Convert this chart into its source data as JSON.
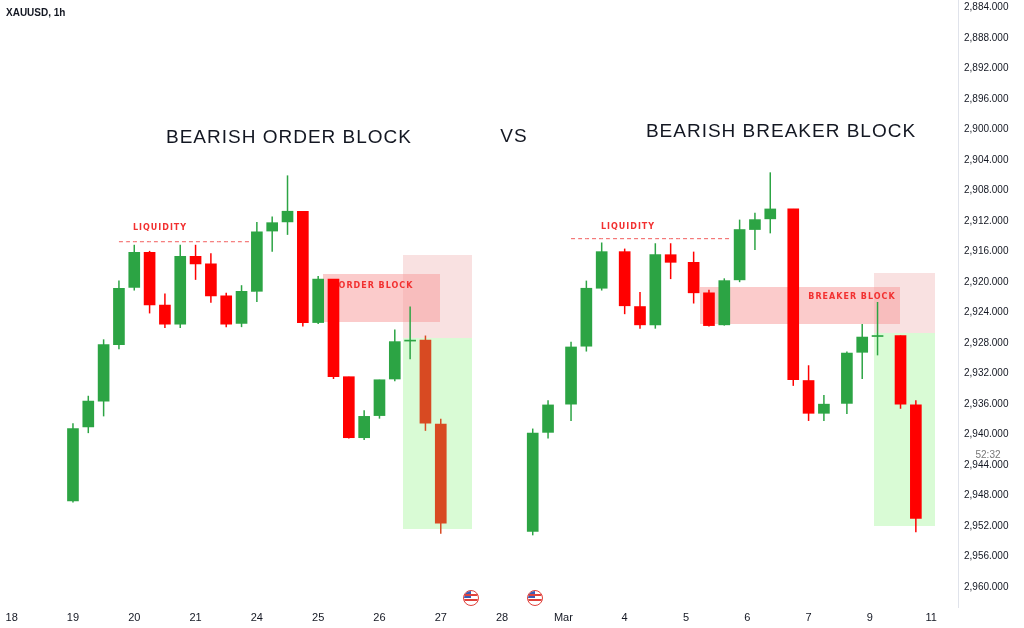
{
  "chart_data": {
    "type": "candlestick",
    "title": "XAUUSD, 1h",
    "annotations": [
      "LIQUIDITY",
      "LIQUIDITY",
      "ORDER BLOCK",
      "BREAKER BLOCK",
      "BEARISH ORDER BLOCK",
      "VS",
      "BEARISH BREAKER BLOCK",
      "52:32"
    ],
    "categories": [
      null,
      "18",
      null,
      null,
      null,
      null,
      null,
      null,
      null,
      "19",
      null,
      null,
      null,
      null,
      null,
      null,
      null,
      "20",
      null,
      null,
      null,
      null,
      null,
      null,
      null,
      "21",
      null,
      null,
      null,
      null,
      null,
      null,
      null,
      "24",
      null,
      null,
      null,
      null,
      null,
      null,
      null,
      "25",
      null,
      null,
      null,
      null,
      null,
      null,
      null,
      "26",
      null,
      null,
      null,
      null,
      null,
      null,
      null,
      "27",
      null,
      null,
      null,
      null,
      null,
      null,
      null,
      "28",
      null,
      null,
      null,
      null,
      null,
      null,
      null,
      "Mar",
      null,
      null,
      null,
      null,
      null,
      null,
      null,
      "4",
      null,
      null,
      null,
      null,
      null,
      null,
      null,
      "5",
      null,
      null,
      null,
      null,
      null,
      null,
      null,
      "6",
      null,
      null,
      null,
      null,
      null,
      null,
      null,
      "7",
      null,
      null,
      null,
      null,
      null,
      null,
      null,
      "9",
      null,
      null,
      null,
      null,
      null,
      null,
      null,
      "11",
      null,
      null,
      null
    ],
    "ohlc": [
      null,
      null,
      null,
      null,
      null,
      null,
      null,
      null,
      null,
      [
        2948.7,
        2948.9,
        2938.5,
        2939.2
      ],
      null,
      [
        2939.0,
        2939.8,
        2934.9,
        2935.6
      ],
      null,
      [
        2935.6,
        2937.6,
        2927.5,
        2928.2
      ],
      null,
      [
        2928.2,
        2928.8,
        2919.8,
        2920.8
      ],
      null,
      [
        2920.7,
        2921.1,
        2915.1,
        2916.1
      ],
      null,
      [
        2916.1,
        2924.1,
        2915.9,
        2923.0
      ],
      null,
      [
        2923.0,
        2926.0,
        2921.5,
        2925.5
      ],
      null,
      [
        2925.5,
        2926.0,
        2915.1,
        2916.6
      ],
      null,
      [
        2916.6,
        2919.7,
        2915.1,
        2917.6
      ],
      null,
      [
        2917.6,
        2922.7,
        2916.2,
        2921.8
      ],
      null,
      [
        2921.8,
        2925.9,
        2921.4,
        2925.5
      ],
      null,
      [
        2925.4,
        2925.9,
        2920.4,
        2921.2
      ],
      null,
      [
        2921.2,
        2922.6,
        2912.1,
        2913.4
      ],
      null,
      [
        2913.3,
        2916.0,
        2911.4,
        2912.2
      ],
      null,
      [
        2912.1,
        2913.8,
        2906.0,
        2910.7
      ],
      null,
      [
        2910.7,
        2925.8,
        2910.7,
        2925.3
      ],
      null,
      [
        2925.3,
        2925.5,
        2919.2,
        2919.6
      ],
      null,
      [
        2919.6,
        2932.7,
        2919.6,
        2932.4
      ],
      null,
      [
        2932.4,
        2940.5,
        2932.4,
        2940.4
      ],
      null,
      [
        2940.4,
        2940.7,
        2936.8,
        2937.6
      ],
      null,
      [
        2937.5,
        2937.9,
        2932.8,
        2932.8
      ],
      null,
      [
        2932.7,
        2933.0,
        2926.2,
        2927.8
      ],
      null,
      [
        2927.7,
        2930.1,
        2923.2,
        2927.6
      ],
      null,
      [
        2927.6,
        2939.5,
        2927.0,
        2938.5
      ],
      null,
      [
        2938.6,
        2953.0,
        2937.9,
        2951.6
      ],
      null,
      null,
      null,
      null,
      null,
      null,
      null,
      null,
      null,
      null,
      null,
      [
        2952.7,
        2953.2,
        2939.2,
        2939.8
      ],
      null,
      [
        2939.7,
        2940.5,
        2935.5,
        2936.1
      ],
      null,
      null,
      [
        2936.0,
        2938.2,
        2927.8,
        2928.5
      ],
      null,
      [
        2928.4,
        2929.1,
        2919.8,
        2920.8
      ],
      null,
      [
        2920.8,
        2921.1,
        2914.8,
        2916.0
      ],
      null,
      null,
      [
        2916.0,
        2924.2,
        2915.6,
        2923.1
      ],
      null,
      [
        2923.2,
        2926.1,
        2921.3,
        2925.6
      ],
      null,
      [
        2925.6,
        2926.1,
        2914.9,
        2916.4
      ],
      null,
      [
        2916.4,
        2919.6,
        2914.9,
        2917.4
      ],
      null,
      null,
      [
        2917.4,
        2922.8,
        2916.0,
        2921.4
      ],
      null,
      [
        2921.4,
        2925.8,
        2921.0,
        2925.7
      ],
      null,
      [
        2925.6,
        2925.7,
        2919.5,
        2919.8
      ],
      null,
      [
        2919.7,
        2920.0,
        2911.8,
        2913.1
      ],
      null,
      [
        2913.1,
        2915.8,
        2910.9,
        2911.8
      ],
      null,
      [
        2911.7,
        2913.6,
        2905.6,
        2910.4
      ],
      null,
      null,
      [
        2910.4,
        2933.6,
        2910.4,
        2932.8
      ],
      null,
      [
        2932.9,
        2938.2,
        2930.9,
        2937.2
      ],
      null,
      [
        2937.2,
        2938.2,
        2934.8,
        2936.0
      ],
      null,
      null,
      [
        2935.9,
        2937.3,
        2929.1,
        2929.3
      ],
      null,
      [
        2929.2,
        2932.7,
        2925.5,
        2927.2
      ],
      null,
      [
        2927.1,
        2929.6,
        2922.6,
        2927.0
      ],
      null,
      null,
      [
        2927.0,
        2936.6,
        2927.0,
        2936.0
      ],
      null,
      [
        2936.1,
        2952.8,
        2935.5,
        2951.0
      ],
      null,
      null,
      null,
      null,
      null
    ],
    "colors": [
      null,
      null,
      null,
      null,
      null,
      null,
      null,
      null,
      null,
      "#2ca444",
      null,
      "#2ca444",
      null,
      "#2ca444",
      null,
      "#2ca444",
      null,
      "#2ca444",
      null,
      "#ff0000",
      null,
      "#ff0000",
      null,
      "#2ca444",
      null,
      "#ff0000",
      null,
      "#ff0000",
      null,
      "#ff0000",
      null,
      "#2ca444",
      null,
      "#2ca444",
      null,
      "#2ca444",
      null,
      "#2ca444",
      null,
      "#ff0000",
      null,
      "#2ca444",
      null,
      "#ff0000",
      null,
      "#ff0000",
      null,
      "#2ca444",
      null,
      "#2ca444",
      null,
      "#2ca444",
      null,
      "#2ca444",
      null,
      "#d84a22",
      null,
      "#d84a22",
      null,
      null,
      null,
      null,
      null,
      null,
      null,
      null,
      null,
      null,
      null,
      "#2ca444",
      null,
      "#2ca444",
      null,
      null,
      "#2ca444",
      null,
      "#2ca444",
      null,
      "#2ca444",
      null,
      null,
      "#ff0000",
      null,
      "#ff0000",
      null,
      "#2ca444",
      null,
      "#ff0000",
      null,
      null,
      "#ff0000",
      null,
      "#ff0000",
      null,
      "#2ca444",
      null,
      "#2ca444",
      null,
      "#2ca444",
      null,
      "#2ca444",
      null,
      null,
      "#ff0000",
      null,
      "#ff0000",
      null,
      "#2ca444",
      null,
      null,
      "#2ca444",
      null,
      "#2ca444",
      null,
      "#2ca444",
      null,
      null,
      "#ff0000",
      null,
      "#ff0000",
      null,
      null,
      null,
      null,
      null
    ],
    "series": [
      {
        "type": "line",
        "color": "#f25c5c",
        "line_style": "dashed",
        "values": [
          null,
          null,
          null,
          null,
          null,
          null,
          null,
          null,
          null,
          null,
          null,
          null,
          null,
          null,
          null,
          2914.7,
          2914.7,
          2914.7,
          2914.7,
          2914.7,
          2914.7,
          2914.7,
          2914.7,
          2914.7,
          2914.7,
          2914.7,
          2914.7,
          2914.7,
          2914.7,
          2914.7,
          2914.7,
          2914.7,
          2914.7,
          null,
          null,
          null,
          null,
          null,
          null,
          null,
          null,
          null,
          null,
          null,
          null,
          null,
          null,
          null,
          null,
          null,
          null,
          null,
          null,
          null,
          null,
          null,
          null,
          null,
          null,
          null,
          null,
          null,
          null,
          null,
          null,
          null,
          null,
          null,
          null,
          null,
          null,
          null,
          null,
          null,
          null,
          null,
          null,
          null,
          null,
          null,
          null,
          null,
          null,
          null,
          null,
          null,
          null,
          null,
          null,
          null,
          null,
          null,
          null,
          null,
          null,
          null,
          null,
          null,
          null,
          null,
          null,
          null,
          null,
          null,
          null,
          null,
          null,
          null,
          null,
          null,
          null,
          null,
          null,
          null,
          null,
          null,
          null,
          null,
          null,
          null,
          null,
          null,
          null,
          null,
          null
        ]
      },
      {
        "type": "line",
        "color": "#f25c5c",
        "line_style": "dashed",
        "values": [
          null,
          null,
          null,
          null,
          null,
          null,
          null,
          null,
          null,
          null,
          null,
          null,
          null,
          null,
          null,
          null,
          null,
          null,
          null,
          null,
          null,
          null,
          null,
          null,
          null,
          null,
          null,
          null,
          null,
          null,
          null,
          null,
          null,
          null,
          null,
          null,
          null,
          null,
          null,
          null,
          null,
          null,
          null,
          null,
          null,
          null,
          null,
          null,
          null,
          null,
          null,
          null,
          null,
          null,
          null,
          null,
          null,
          null,
          null,
          null,
          null,
          null,
          null,
          null,
          null,
          null,
          null,
          null,
          null,
          null,
          null,
          null,
          null,
          null,
          2914.3,
          2914.3,
          2914.3,
          2914.3,
          2914.3,
          2914.3,
          2914.3,
          2914.3,
          2914.3,
          2914.3,
          2914.3,
          2914.3,
          2914.3,
          2914.3,
          2914.3,
          2914.3,
          2914.3,
          2914.3,
          2914.3,
          2914.3,
          2914.3,
          2914.3,
          null,
          null,
          null,
          null,
          null,
          null,
          null,
          null,
          null,
          null,
          null,
          null,
          null,
          null,
          null,
          null,
          null,
          null,
          null,
          null,
          null,
          null,
          null,
          null,
          null,
          null,
          null,
          null,
          null
        ]
      }
    ],
    "ylim": [
      2962.6,
      2883.0
    ],
    "yticks": [
      {
        "value": 2884,
        "label": "2,884.000"
      },
      {
        "value": 2888,
        "label": "2,888.000"
      },
      {
        "value": 2892,
        "label": "2,892.000"
      },
      {
        "value": 2896,
        "label": "2,896.000"
      },
      {
        "value": 2900,
        "label": "2,900.000"
      },
      {
        "value": 2904,
        "label": "2,904.000"
      },
      {
        "value": 2908,
        "label": "2,908.000"
      },
      {
        "value": 2912,
        "label": "2,912.000"
      },
      {
        "value": 2916,
        "label": "2,916.000"
      },
      {
        "value": 2920,
        "label": "2,920.000"
      },
      {
        "value": 2924,
        "label": "2,924.000"
      },
      {
        "value": 2928,
        "label": "2,928.000"
      },
      {
        "value": 2932,
        "label": "2,932.000"
      },
      {
        "value": 2936,
        "label": "2,936.000"
      },
      {
        "value": 2940,
        "label": "2,940.000"
      },
      {
        "value": 2944,
        "label": "2,944.000"
      },
      {
        "value": 2948,
        "label": "2,948.000"
      },
      {
        "value": 2952,
        "label": "2,952.000"
      },
      {
        "value": 2956,
        "label": "2,956.000"
      },
      {
        "value": 2960,
        "label": "2,960.000"
      }
    ],
    "grid": false,
    "legend": false,
    "marker": "none"
  }
}
